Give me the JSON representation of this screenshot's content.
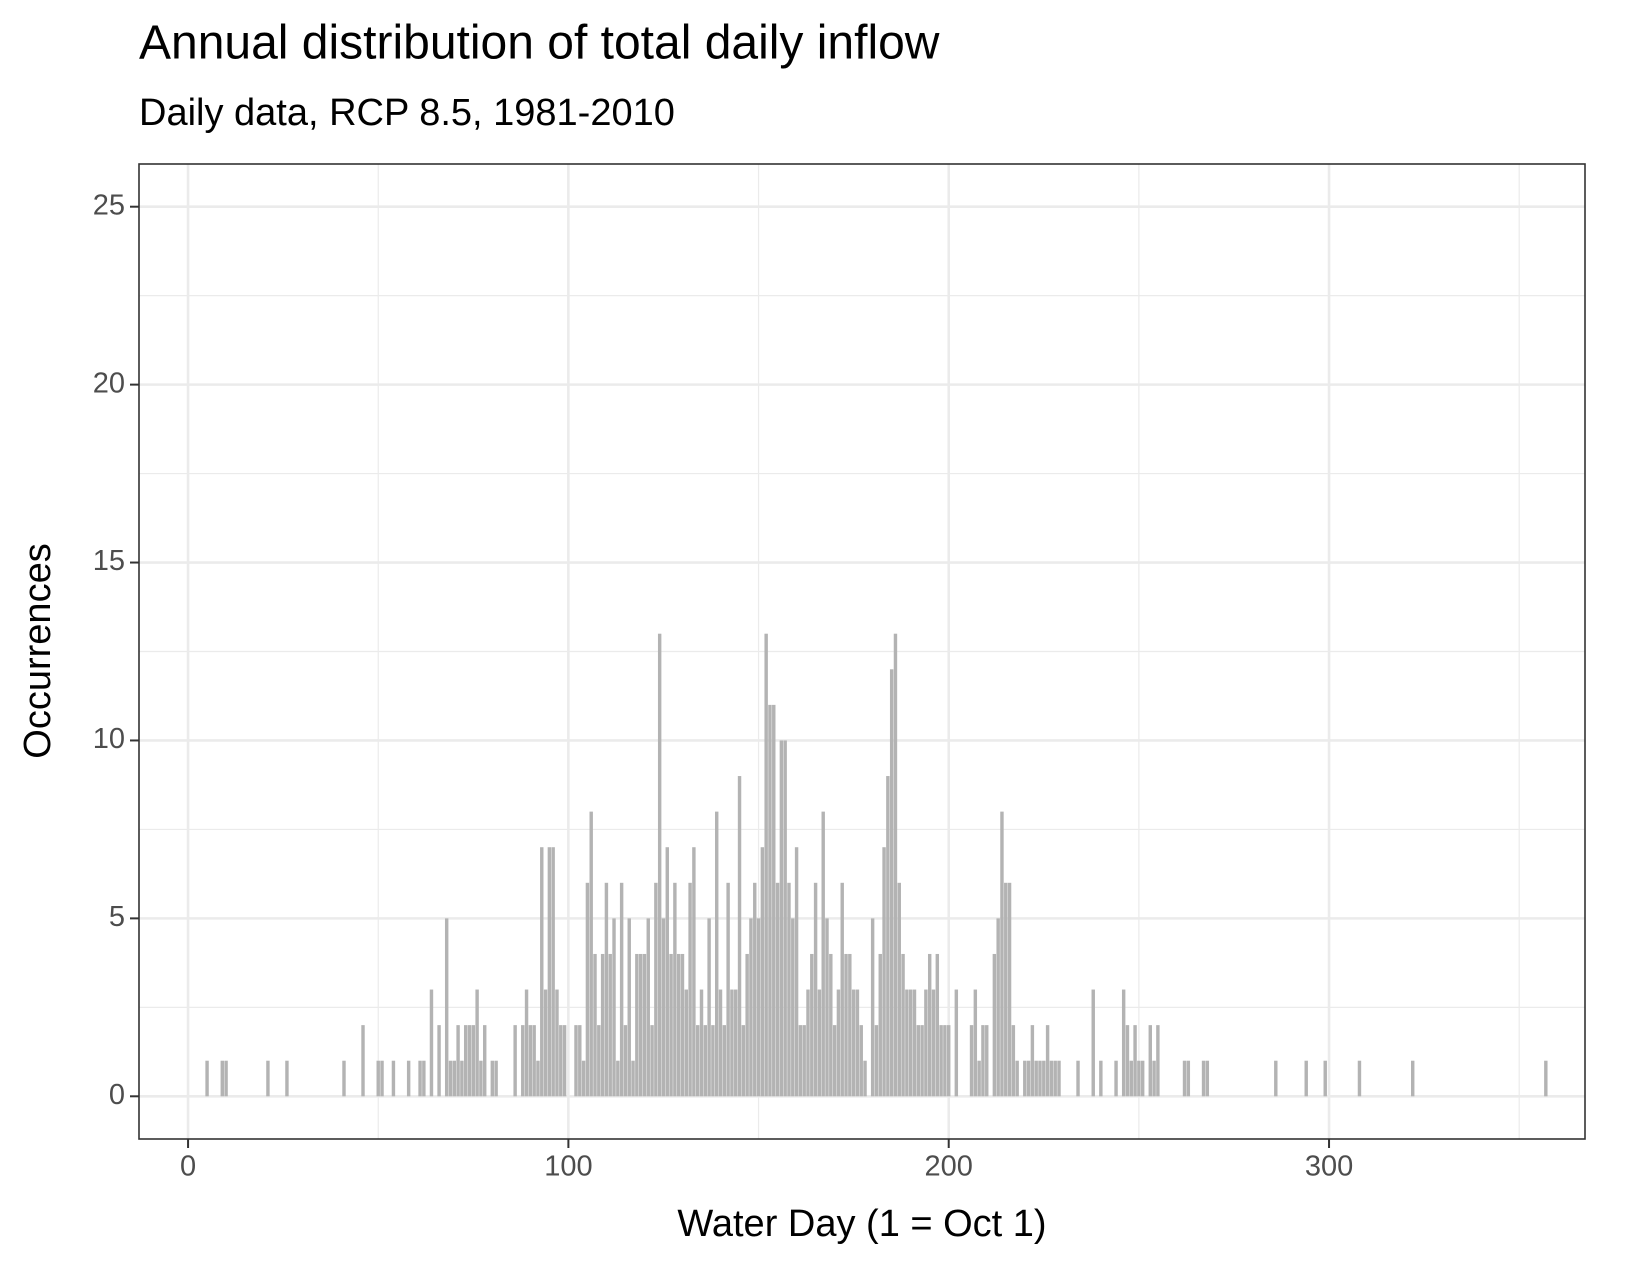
{
  "chart_data": {
    "type": "bar",
    "title": "Annual distribution of total daily inflow",
    "subtitle": "Daily data, RCP 8.5, 1981-2010",
    "x_label": "Water Day (1 = Oct 1)",
    "y_label": "Occurrences",
    "x": [
      5,
      9,
      10,
      21,
      26,
      41,
      46,
      50,
      51,
      54,
      58,
      61,
      62,
      64,
      66,
      68,
      69,
      70,
      71,
      72,
      73,
      74,
      75,
      76,
      77,
      78,
      80,
      81,
      86,
      88,
      89,
      90,
      91,
      92,
      93,
      94,
      95,
      96,
      97,
      98,
      99,
      102,
      103,
      104,
      105,
      106,
      107,
      108,
      109,
      110,
      111,
      112,
      113,
      114,
      115,
      116,
      117,
      118,
      119,
      120,
      121,
      122,
      123,
      124,
      125,
      126,
      127,
      128,
      129,
      130,
      131,
      132,
      133,
      134,
      135,
      136,
      137,
      138,
      139,
      140,
      141,
      142,
      143,
      144,
      145,
      146,
      147,
      148,
      149,
      150,
      151,
      152,
      153,
      154,
      155,
      156,
      157,
      158,
      159,
      160,
      161,
      162,
      163,
      164,
      165,
      166,
      167,
      168,
      169,
      170,
      171,
      172,
      173,
      174,
      175,
      176,
      177,
      178,
      180,
      181,
      182,
      183,
      184,
      185,
      186,
      187,
      188,
      189,
      190,
      191,
      192,
      193,
      194,
      195,
      196,
      197,
      198,
      199,
      200,
      202,
      206,
      207,
      208,
      209,
      210,
      212,
      213,
      214,
      215,
      216,
      217,
      218,
      220,
      221,
      222,
      223,
      224,
      225,
      226,
      227,
      228,
      229,
      234,
      238,
      240,
      244,
      246,
      247,
      248,
      249,
      250,
      251,
      253,
      254,
      255,
      262,
      263,
      267,
      268,
      286,
      294,
      299,
      308,
      322,
      357
    ],
    "values": [
      1,
      1,
      1,
      1,
      1,
      1,
      2,
      1,
      1,
      1,
      1,
      1,
      1,
      3,
      2,
      5,
      1,
      1,
      2,
      1,
      2,
      2,
      2,
      3,
      1,
      2,
      1,
      1,
      2,
      2,
      3,
      2,
      2,
      1,
      7,
      3,
      7,
      7,
      3,
      2,
      2,
      2,
      2,
      1,
      6,
      8,
      4,
      2,
      4,
      6,
      4,
      5,
      1,
      6,
      2,
      5,
      1,
      4,
      4,
      4,
      5,
      2,
      6,
      13,
      5,
      7,
      4,
      6,
      4,
      4,
      3,
      6,
      7,
      2,
      3,
      2,
      5,
      2,
      8,
      3,
      2,
      6,
      3,
      3,
      9,
      2,
      4,
      5,
      6,
      5,
      7,
      13,
      11,
      11,
      6,
      10,
      10,
      6,
      5,
      7,
      2,
      2,
      3,
      4,
      6,
      3,
      8,
      5,
      4,
      2,
      3,
      6,
      4,
      4,
      3,
      3,
      2,
      1,
      5,
      2,
      4,
      7,
      9,
      12,
      13,
      6,
      4,
      3,
      3,
      3,
      2,
      2,
      3,
      4,
      3,
      4,
      2,
      2,
      2,
      3,
      2,
      3,
      1,
      2,
      2,
      4,
      5,
      8,
      6,
      6,
      2,
      1,
      1,
      1,
      2,
      1,
      1,
      1,
      2,
      1,
      1,
      1,
      1,
      3,
      1,
      1,
      3,
      2,
      1,
      2,
      1,
      1,
      2,
      1,
      2,
      1,
      1,
      1,
      1,
      1,
      1,
      1,
      1,
      1,
      1
    ],
    "color": "#b3b3b3",
    "xlim": [
      -12.9,
      367.3
    ],
    "xticks": [
      0,
      100,
      200,
      300
    ],
    "ylim": [
      -1.2,
      26.2
    ],
    "yticks": [
      0,
      5,
      10,
      15,
      20,
      25
    ],
    "grid": true
  }
}
